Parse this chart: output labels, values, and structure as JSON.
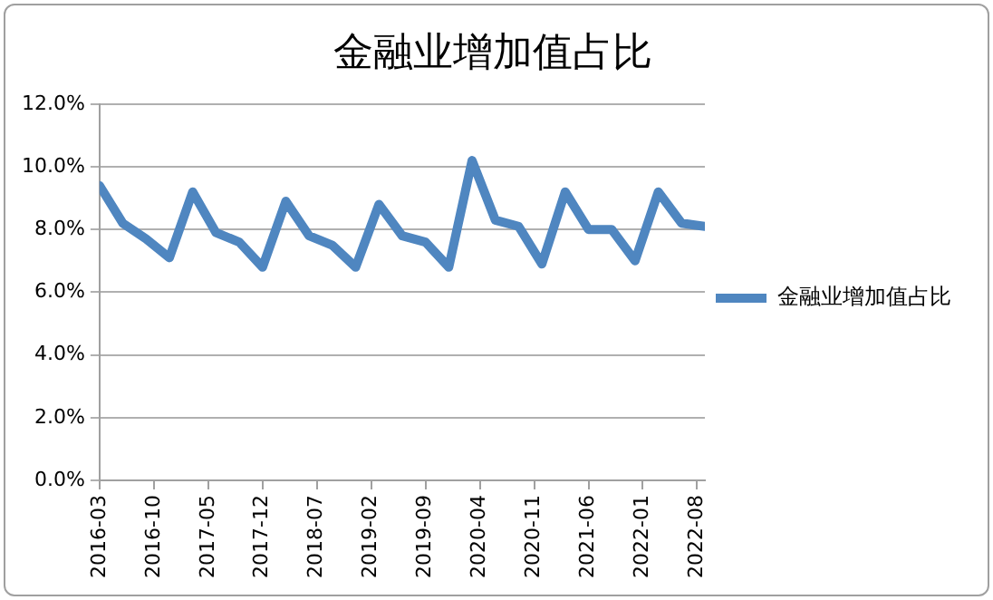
{
  "chart_data": {
    "type": "line",
    "title": "金融业增加值占比",
    "x": [
      "2016-03",
      "2016-06",
      "2016-09",
      "2016-12",
      "2017-03",
      "2017-06",
      "2017-09",
      "2017-12",
      "2018-03",
      "2018-06",
      "2018-09",
      "2018-12",
      "2019-03",
      "2019-06",
      "2019-09",
      "2019-12",
      "2020-03",
      "2020-06",
      "2020-09",
      "2020-12",
      "2021-03",
      "2021-06",
      "2021-09",
      "2021-12",
      "2022-03",
      "2022-06",
      "2022-09"
    ],
    "series": [
      {
        "name": "金融业增加值占比",
        "color": "#4f86c0",
        "values": [
          9.4,
          8.2,
          7.7,
          7.1,
          9.2,
          7.9,
          7.6,
          6.8,
          8.9,
          7.8,
          7.5,
          6.8,
          8.8,
          7.8,
          7.6,
          6.8,
          10.2,
          8.3,
          8.1,
          6.9,
          9.2,
          8.0,
          8.0,
          7.0,
          9.2,
          8.2,
          8.1
        ]
      }
    ],
    "xlim": [
      "2016-03",
      "2022-09"
    ],
    "xticks": [
      "2016-03",
      "2016-10",
      "2017-05",
      "2017-12",
      "2018-07",
      "2019-02",
      "2019-09",
      "2020-04",
      "2020-11",
      "2021-06",
      "2022-01",
      "2022-08"
    ],
    "ylim": [
      0,
      12
    ],
    "yticks": [
      {
        "value": 0,
        "label": "0.0%"
      },
      {
        "value": 2,
        "label": "2.0%"
      },
      {
        "value": 4,
        "label": "4.0%"
      },
      {
        "value": 6,
        "label": "6.0%"
      },
      {
        "value": 8,
        "label": "8.0%"
      },
      {
        "value": 10,
        "label": "10.0%"
      },
      {
        "value": 12,
        "label": "12.0%"
      }
    ],
    "grid": "y",
    "legend": "right",
    "marker": "none",
    "line_style": "solid"
  }
}
